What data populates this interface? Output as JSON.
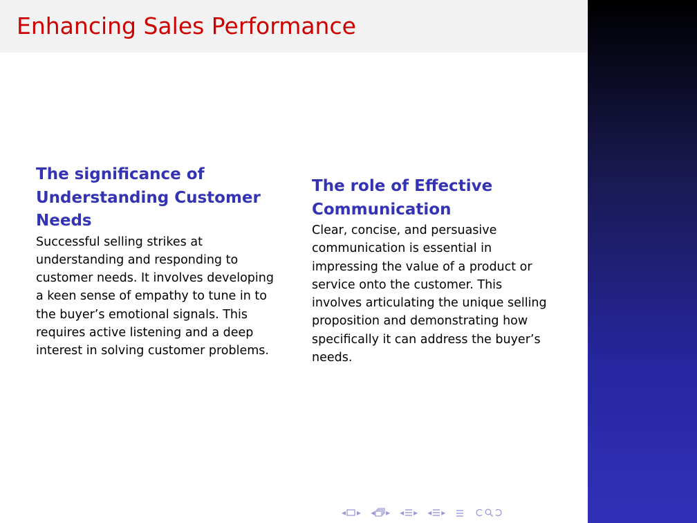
{
  "slide": {
    "title": "Enhancing Sales Performance"
  },
  "columns": [
    {
      "heading": "The significance of Understanding Customer Needs",
      "body": "Successful selling strikes at understanding and responding to customer needs. It involves developing a keen sense of empathy to tune in to the buyer’s emotional signals. This requires active listening and a deep interest in solving customer problems."
    },
    {
      "heading": "The role of Effective Communication",
      "body": "Clear, concise, and persuasive communication is essential in impressing the value of a product or service onto the customer. This involves articulating the unique selling proposition and demonstrating how specifically it can address the buyer’s needs."
    }
  ],
  "navigation": {
    "icon_color": "#9a9ad6",
    "icons": [
      "nav-frame-prev-icon",
      "nav-frame-icon",
      "nav-frame-next-icon",
      "nav-subsection-prev-icon",
      "nav-subsection-icon",
      "nav-subsection-next-icon",
      "nav-section-prev-icon",
      "nav-section-icon",
      "nav-section-next-icon",
      "nav-part-prev-icon",
      "nav-part-icon",
      "nav-part-next-icon",
      "nav-align-icon",
      "nav-search-icon",
      "nav-back-icon",
      "nav-forward-icon"
    ]
  },
  "theme": {
    "title_color": "#cc0000",
    "heading_color": "#3333b3",
    "sidebar_top": "#000000",
    "sidebar_bottom": "#3131b8"
  }
}
